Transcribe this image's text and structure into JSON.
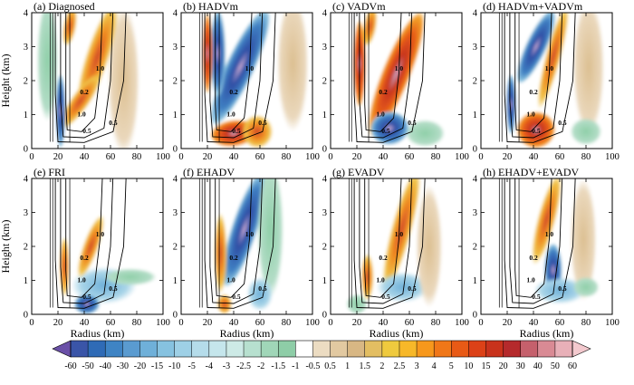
{
  "figure": {
    "panels": [
      {
        "label": "(a) Diagnosed"
      },
      {
        "label": "(b) HADVm"
      },
      {
        "label": "(c) VADVm"
      },
      {
        "label": "(d) HADVm+VADVm"
      },
      {
        "label": "(e) FRI"
      },
      {
        "label": "(f) EHADV"
      },
      {
        "label": "(g) EVADV"
      },
      {
        "label": "(h) EHADV+EVADV"
      }
    ],
    "x_axis_label": "Radius (km)",
    "y_axis_label": "Height (km)"
  },
  "chart_data": {
    "type": "heatmap",
    "xlabel": "Radius (km)",
    "ylabel": "Height (km)",
    "xlim": [
      0,
      100
    ],
    "ylim": [
      0,
      4
    ],
    "x_ticks": [
      "0",
      "20",
      "40",
      "60",
      "80",
      "100"
    ],
    "y_ticks": [
      "0",
      "1",
      "2",
      "3",
      "4"
    ],
    "panels": [
      "(a) Diagnosed",
      "(b) HADVm",
      "(c) VADVm",
      "(d) HADVm+VADVm",
      "(e) FRI",
      "(f) EHADV",
      "(g) EVADV",
      "(h) EHADV+EVADV"
    ],
    "contour_levels": [
      "0.2",
      "0.5",
      "1.0"
    ],
    "colorbar": {
      "levels": [
        "-60",
        "-50",
        "-40",
        "-30",
        "-20",
        "-15",
        "-10",
        "-5",
        "-4",
        "-3",
        "-2.5",
        "-2",
        "-1.5",
        "-1",
        "-0.5",
        "0.5",
        "1",
        "1.5",
        "2",
        "2.5",
        "3",
        "4",
        "5",
        "10",
        "15",
        "20",
        "30",
        "40",
        "50",
        "60"
      ],
      "colors": [
        "#6a50a7",
        "#3a55a8",
        "#2f6bb6",
        "#3f84c4",
        "#5a9bd0",
        "#6fb0d9",
        "#86c2e0",
        "#9ed0e6",
        "#b5dcea",
        "#c5e6ec",
        "#cdeae6",
        "#b7e0cf",
        "#a0d6b8",
        "#8ecda7",
        "#ffffff",
        "#ecdcc2",
        "#e2c9a1",
        "#d8b784",
        "#e3be62",
        "#efca3e",
        "#f7b829",
        "#f7981c",
        "#f07718",
        "#e85a16",
        "#dc4117",
        "#c8321c",
        "#b52a2c",
        "#c5606c",
        "#d98a94",
        "#e8b0b8",
        "#f3c9ce"
      ]
    }
  }
}
